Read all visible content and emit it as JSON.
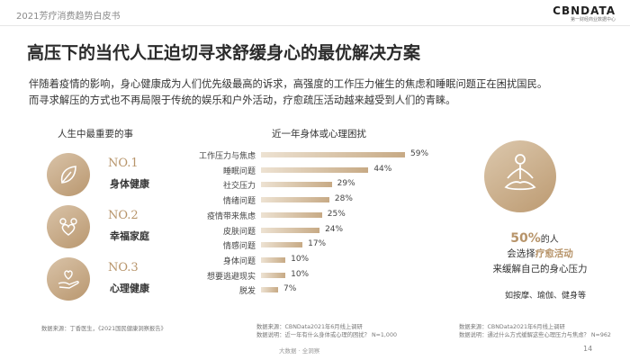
{
  "header": {
    "report_title": "2021芳疗消费趋势白皮书",
    "logo_main": "CBNDATA",
    "logo_sub": "第一财经商业数据中心"
  },
  "headline": "高压下的当代人正迫切寻求舒缓身心的最优解决方案",
  "intro": {
    "line1": "伴随着疫情的影响，身心健康成为人们优先级最高的诉求，高强度的工作压力催生的焦虑和睡眠问题正在困扰国民。",
    "line2": "而寻求解压的方式也不再局限于传统的娱乐和户外活动，疗愈疏压活动越来越受到人们的青睐。"
  },
  "left_panel": {
    "title": "人生中最重要的事",
    "items": [
      {
        "rank": "NO.1",
        "label": "身体健康",
        "icon": "leaf-icon"
      },
      {
        "rank": "NO.2",
        "label": "幸福家庭",
        "icon": "family-heart-icon"
      },
      {
        "rank": "NO.3",
        "label": "心理健康",
        "icon": "hand-heart-icon"
      }
    ],
    "source": "数据来源：丁香医生，《2021国民健康洞察报告》"
  },
  "chart_data": {
    "type": "bar",
    "orientation": "horizontal",
    "title": "近一年身体或心理困扰",
    "categories": [
      "工作压力与焦虑",
      "睡眠问题",
      "社交压力",
      "情绪问题",
      "疫情带来焦虑",
      "皮肤问题",
      "情感问题",
      "身体问题",
      "想要逃避现实",
      "脱发"
    ],
    "values": [
      59,
      44,
      29,
      28,
      25,
      24,
      17,
      10,
      10,
      7
    ],
    "value_labels": [
      "59%",
      "44%",
      "29%",
      "28%",
      "25%",
      "24%",
      "17%",
      "10%",
      "10%",
      "7%"
    ],
    "xlim": [
      0,
      59
    ],
    "grid": false,
    "source_line1": "数据来源：CBNData2021年6月线上调研",
    "source_line2": "数据说明：近一年有什么身体或心理的困扰？ N=1,000"
  },
  "right_panel": {
    "icon": "meditation-icon",
    "percent": "50%",
    "percent_suffix": "的人",
    "line2_prefix": "会选择",
    "line2_highlight": "疗愈活动",
    "line3": "来缓解自己的身心压力",
    "example": "如按摩、瑜伽、健身等",
    "source_line1": "数据来源：CBNData2021年6月线上调研",
    "source_line2": "数据说明：通过什么方式缓解这些心理压力与焦虑？ N=962"
  },
  "footer": {
    "center": "大数据 · 全洞察",
    "page": "14"
  },
  "colors": {
    "accent_gold": "#b7946a",
    "bar_start": "#ede2d2",
    "bar_end": "#c7aa85"
  }
}
